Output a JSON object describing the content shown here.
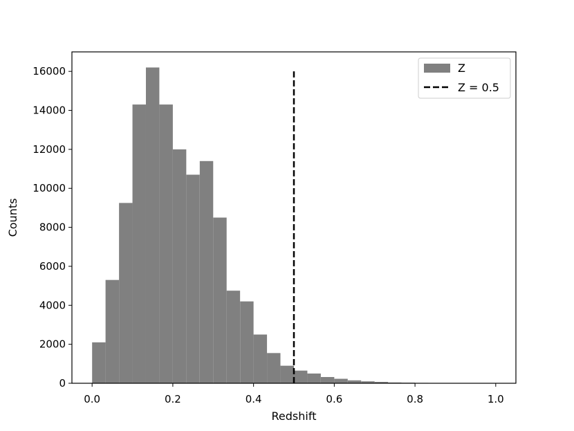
{
  "chart_data": {
    "type": "bar",
    "title": "",
    "xlabel": "Redshift",
    "ylabel": "Counts",
    "xlim": [
      -0.05,
      1.05
    ],
    "ylim": [
      0,
      17000
    ],
    "xticks": [
      0.0,
      0.2,
      0.4,
      0.6,
      0.8,
      1.0
    ],
    "xtick_labels": [
      "0.0",
      "0.2",
      "0.4",
      "0.6",
      "0.8",
      "1.0"
    ],
    "yticks": [
      0,
      2000,
      4000,
      6000,
      8000,
      10000,
      12000,
      14000,
      16000
    ],
    "ytick_labels": [
      "0",
      "2000",
      "4000",
      "6000",
      "8000",
      "10000",
      "12000",
      "14000",
      "16000"
    ],
    "grid": false,
    "legend_position": "upper right",
    "series": [
      {
        "name": "Z",
        "kind": "histogram",
        "color": "#808080",
        "bin_width": 0.0333,
        "bin_starts": [
          0.0,
          0.0333,
          0.0667,
          0.1,
          0.1333,
          0.1667,
          0.2,
          0.2333,
          0.2667,
          0.3,
          0.3333,
          0.3667,
          0.4,
          0.4333,
          0.4667,
          0.5,
          0.5333,
          0.5667,
          0.6,
          0.6333,
          0.6667,
          0.7,
          0.7333,
          0.7667,
          0.8,
          0.8333,
          0.8667,
          0.9,
          0.9333,
          0.9667
        ],
        "counts": [
          2100,
          5300,
          9250,
          14300,
          16200,
          14300,
          12000,
          10700,
          11400,
          8500,
          4750,
          4200,
          2500,
          1550,
          900,
          650,
          500,
          320,
          230,
          150,
          100,
          70,
          40,
          30,
          20,
          15,
          10,
          5,
          5,
          5
        ]
      },
      {
        "name": "Z = 0.5",
        "kind": "vline",
        "color": "#000000",
        "style": "dashed",
        "x": 0.5,
        "y_range": [
          0,
          16000
        ]
      }
    ]
  }
}
